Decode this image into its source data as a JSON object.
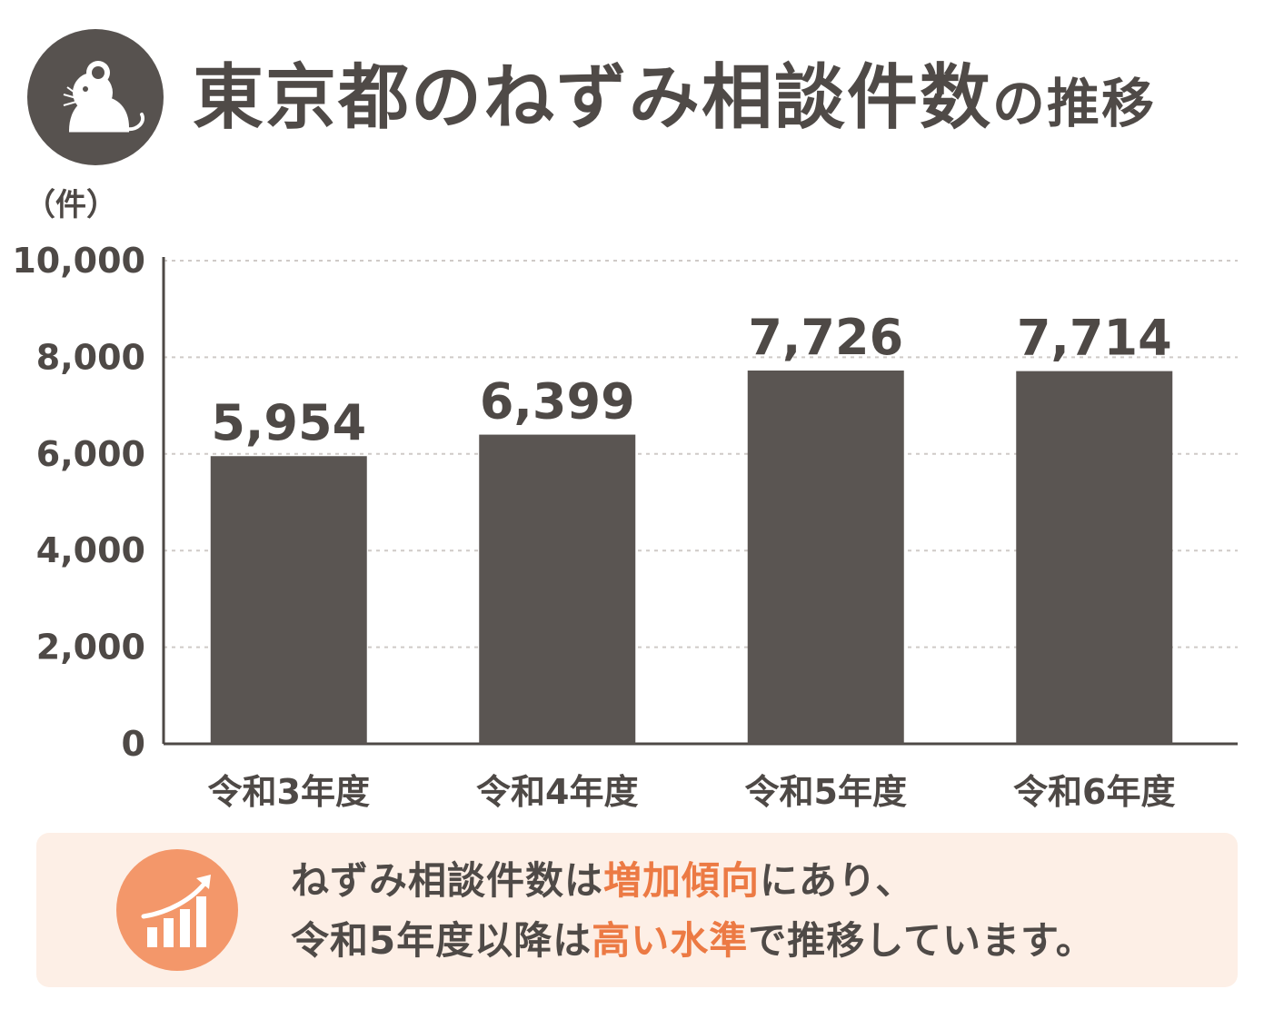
{
  "header": {
    "title_main": "東京都のねずみ相談件数",
    "title_suffix": "の推移",
    "icon": "mouse-icon"
  },
  "chart_data": {
    "type": "bar",
    "title": "東京都のねずみ相談件数の推移",
    "ylabel": "（件）",
    "xlabel": "",
    "categories": [
      "令和3年度",
      "令和4年度",
      "令和5年度",
      "令和6年度"
    ],
    "values": [
      5954,
      6399,
      7726,
      7714
    ],
    "value_labels": [
      "5,954",
      "6,399",
      "7,726",
      "7,714"
    ],
    "ylim": [
      0,
      10000
    ],
    "yticks": [
      0,
      2000,
      4000,
      6000,
      8000,
      10000
    ],
    "ytick_labels": [
      "0",
      "2,000",
      "4,000",
      "6,000",
      "8,000",
      "10,000"
    ],
    "grid": "horizontal dashed",
    "legend": "none",
    "colors": {
      "bar": "#5a5552",
      "grid": "#cfcac7",
      "axis": "#4e4946",
      "text": "#4e4946"
    }
  },
  "callout": {
    "icon": "trend-up-icon",
    "line1": {
      "a": "ねずみ相談件数は",
      "b": "増加傾向",
      "c": "にあり、"
    },
    "line2": {
      "a": "令和5年度以降は",
      "b": "高い水準",
      "c": "で推移しています。"
    },
    "colors": {
      "background": "#fdefe6",
      "accent": "#ec7a44",
      "badge": "#f3976a"
    }
  }
}
